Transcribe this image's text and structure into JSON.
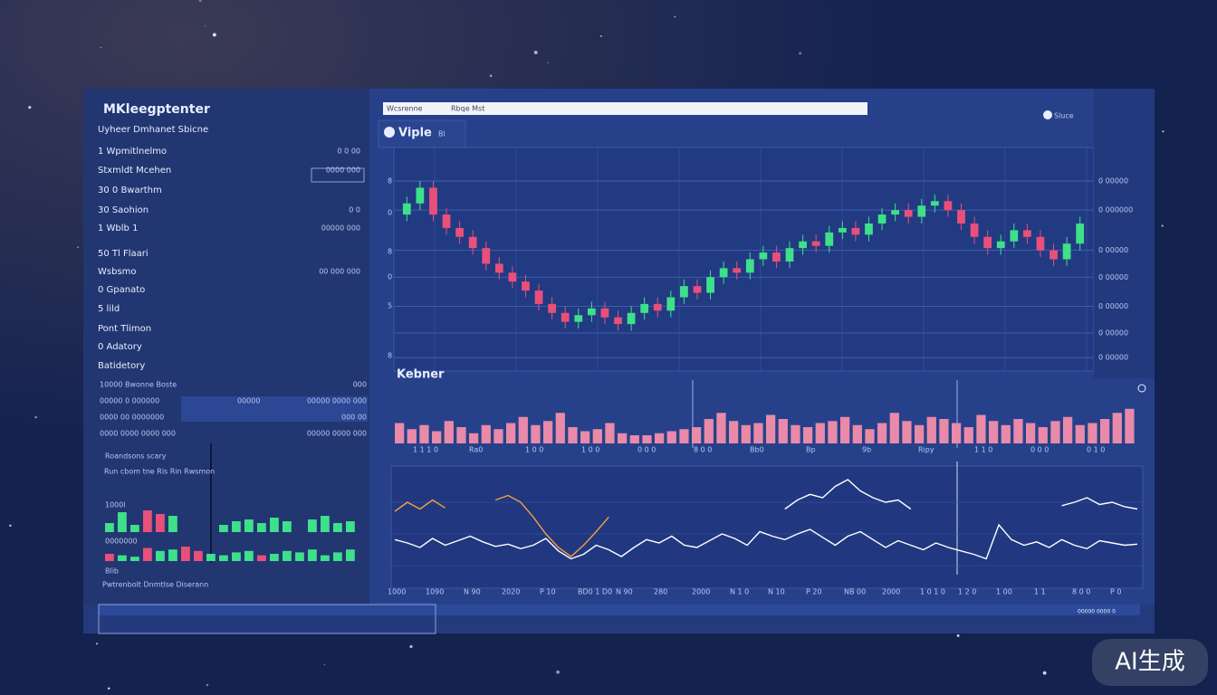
{
  "sidebar": {
    "title": "MKleegptenter",
    "subtitle": "Uyheer Dmhanet Sbicne",
    "items": [
      {
        "label": "1 Wpmitlnelmo",
        "value": "0 0 00"
      },
      {
        "label": "Stxmldt Mcehen",
        "value": "0000 000"
      },
      {
        "label": "30 0 Bwarthm"
      },
      {
        "label": "30 Saohion",
        "value": "0 0"
      },
      {
        "label": "1 Wblb  1",
        "value": "00000 000"
      },
      {
        "label": "50 Tl Flaari"
      },
      {
        "label": "Wsbsmo",
        "value": "00 000 000"
      },
      {
        "label": "0 Gpanato"
      },
      {
        "label": "5 lild"
      },
      {
        "label": "Pont Tlimon"
      },
      {
        "label": "0 Adatory"
      },
      {
        "label": "Batidetory"
      }
    ],
    "table": {
      "rows": [
        [
          "10000 Bwonne Boste",
          "000"
        ],
        [
          "00000 0 000000",
          "00000",
          "00000 0000 000"
        ],
        [
          "0000 00 0000000",
          "000 00"
        ],
        [
          "0000 0000 0000 000",
          "00000 0000 000"
        ]
      ]
    },
    "section_title": "Roandsons scary",
    "section_text": "Run cbom tne Ris Rin Rwsmon",
    "mini1": {
      "label": "1000l",
      "ylim": [
        0,
        30
      ],
      "series": [
        {
          "color": "#3ee08a",
          "values": [
            10,
            22,
            8,
            null,
            null,
            18,
            null,
            null,
            null,
            8,
            12,
            14,
            10,
            16,
            12,
            null,
            14,
            18,
            10,
            12
          ]
        },
        {
          "color": "#e8507a",
          "values": [
            null,
            null,
            null,
            24,
            20,
            null,
            null,
            null,
            null,
            null,
            null,
            null,
            null,
            null,
            null,
            null,
            null,
            null,
            null,
            null
          ]
        }
      ]
    },
    "mini2": {
      "label": "0000000",
      "ylim": [
        0,
        30
      ],
      "series": [
        {
          "color": "#3ee08a",
          "values": [
            null,
            8,
            6,
            null,
            14,
            16,
            null,
            null,
            10,
            8,
            12,
            14,
            null,
            10,
            14,
            12,
            16,
            8,
            12,
            16
          ]
        },
        {
          "color": "#e8507a",
          "values": [
            10,
            null,
            null,
            18,
            null,
            null,
            20,
            14,
            null,
            null,
            null,
            null,
            8,
            null,
            null,
            null,
            null,
            null,
            null,
            null
          ]
        }
      ]
    },
    "footer1": "Blib",
    "footer2": "Pwtrenbolt Dnmtlse Diserann"
  },
  "header": {
    "search_left": "Wcsrenne",
    "search_right": "Rbqe Mst",
    "right": "Sluce",
    "tab": "Viple",
    "tab_badge": "Bl"
  },
  "price_chart": {
    "type": "candlestick",
    "ylim": [
      0,
      100
    ],
    "up_color": "#3ee08a",
    "down_color": "#e8507a",
    "left_labels": [
      "8",
      "0",
      "8",
      "0",
      "5",
      "8"
    ],
    "yticks": [
      {
        "value": 85,
        "label": "0 00000"
      },
      {
        "value": 72,
        "label": "0 000000"
      },
      {
        "value": 54,
        "label": "0 00000"
      },
      {
        "value": 42,
        "label": "0 00000"
      },
      {
        "value": 29,
        "label": "0 00000"
      },
      {
        "value": 17,
        "label": "0 00000"
      },
      {
        "value": 6,
        "label": "0 00000"
      }
    ],
    "open": [
      70,
      75,
      82,
      70,
      64,
      60,
      55,
      48,
      44,
      40,
      36,
      30,
      26,
      22,
      25,
      28,
      24,
      21,
      26,
      30,
      27,
      33,
      38,
      35,
      42,
      46,
      44,
      50,
      53,
      49,
      55,
      58,
      56,
      62,
      64,
      61,
      66,
      70,
      72,
      69,
      74,
      76,
      72,
      66,
      60,
      55,
      58,
      63,
      60,
      54,
      50,
      57
    ],
    "close": [
      75,
      82,
      70,
      64,
      60,
      55,
      48,
      44,
      40,
      36,
      30,
      26,
      22,
      25,
      28,
      24,
      21,
      26,
      30,
      27,
      33,
      38,
      35,
      42,
      46,
      44,
      50,
      53,
      49,
      55,
      58,
      56,
      62,
      64,
      61,
      66,
      70,
      72,
      69,
      74,
      76,
      72,
      66,
      60,
      55,
      58,
      63,
      60,
      54,
      50,
      57,
      66
    ],
    "high": [
      78,
      85,
      85,
      73,
      67,
      63,
      58,
      51,
      47,
      43,
      39,
      33,
      29,
      28,
      31,
      31,
      27,
      29,
      33,
      33,
      36,
      41,
      41,
      45,
      49,
      49,
      53,
      56,
      56,
      58,
      61,
      61,
      65,
      67,
      67,
      69,
      73,
      75,
      75,
      77,
      79,
      79,
      75,
      69,
      63,
      61,
      66,
      66,
      63,
      57,
      60,
      69
    ],
    "low": [
      67,
      72,
      67,
      61,
      57,
      52,
      45,
      41,
      37,
      33,
      27,
      23,
      19,
      19,
      22,
      21,
      18,
      18,
      23,
      24,
      24,
      30,
      32,
      32,
      39,
      41,
      41,
      47,
      46,
      46,
      52,
      53,
      53,
      59,
      58,
      58,
      63,
      67,
      66,
      66,
      71,
      69,
      63,
      57,
      52,
      52,
      55,
      57,
      51,
      47,
      47,
      54
    ]
  },
  "volume_chart": {
    "type": "bar",
    "title": "Kebner",
    "ylim": [
      0,
      40
    ],
    "color": "#e88aa8",
    "values": [
      20,
      14,
      18,
      12,
      22,
      16,
      10,
      18,
      14,
      20,
      26,
      18,
      22,
      30,
      16,
      12,
      14,
      20,
      10,
      8,
      8,
      10,
      12,
      14,
      16,
      24,
      30,
      22,
      18,
      20,
      28,
      24,
      18,
      16,
      20,
      22,
      26,
      18,
      14,
      20,
      30,
      22,
      18,
      26,
      24,
      20,
      16,
      28,
      22,
      18,
      24,
      20,
      16,
      22,
      26,
      18,
      20,
      24,
      30,
      34
    ],
    "x_labels": [
      "1 1 1 0",
      "Ra0",
      "1 0 0",
      "1 0 0",
      "0 0 0",
      "8 0 0",
      "Bb0",
      "Bp",
      "9b",
      "Ripy",
      "1 1 0",
      "0 0 0",
      "0 1 0"
    ]
  },
  "line_chart": {
    "type": "line",
    "ylim": [
      0,
      100
    ],
    "series": [
      {
        "color": "#f0a040",
        "values": [
          60,
          68,
          62,
          70,
          63,
          null,
          null,
          null,
          70,
          74,
          68,
          55,
          40,
          28,
          20,
          30,
          42,
          55,
          null,
          null,
          null,
          null,
          null,
          null,
          null,
          null,
          null,
          null,
          null,
          null,
          null,
          null,
          null,
          null,
          null,
          null,
          null,
          null,
          null,
          null,
          null,
          null,
          null,
          null,
          null,
          null,
          null,
          null,
          null,
          null,
          null,
          null,
          null,
          null,
          null,
          null,
          null,
          null,
          null,
          null
        ]
      },
      {
        "color": "#ffffff",
        "values": [
          null,
          null,
          null,
          null,
          null,
          null,
          null,
          null,
          null,
          null,
          null,
          null,
          null,
          null,
          null,
          null,
          null,
          null,
          null,
          null,
          null,
          null,
          null,
          null,
          null,
          null,
          null,
          null,
          null,
          null,
          null,
          62,
          70,
          75,
          72,
          82,
          88,
          78,
          72,
          68,
          70,
          62,
          null,
          null,
          null,
          null,
          null,
          null,
          null,
          null,
          null,
          null,
          null,
          65,
          68,
          72,
          66,
          68,
          64,
          62
        ]
      },
      {
        "color": "#ffffff",
        "values": [
          35,
          32,
          28,
          36,
          30,
          34,
          38,
          33,
          29,
          31,
          27,
          30,
          36,
          25,
          18,
          22,
          30,
          26,
          20,
          28,
          35,
          32,
          38,
          30,
          28,
          34,
          40,
          36,
          30,
          42,
          38,
          35,
          40,
          44,
          37,
          30,
          38,
          42,
          35,
          28,
          34,
          30,
          26,
          32,
          28,
          25,
          22,
          18,
          48,
          35,
          30,
          33,
          28,
          35,
          30,
          27,
          34,
          32,
          30,
          31
        ]
      }
    ],
    "x_labels": [
      "1000",
      "1090",
      "N 90",
      "2020",
      "P 10",
      "BD0 1 D0",
      "N 90",
      "280",
      "2000",
      "N 1 0",
      "N 10",
      "P 20",
      "NB 00",
      "2000",
      "1 0 1 0",
      "1 2 0",
      "1 00",
      "1 1",
      "8 0 0",
      "P 0"
    ]
  },
  "footer": {
    "status": "00000 0000 0"
  }
}
